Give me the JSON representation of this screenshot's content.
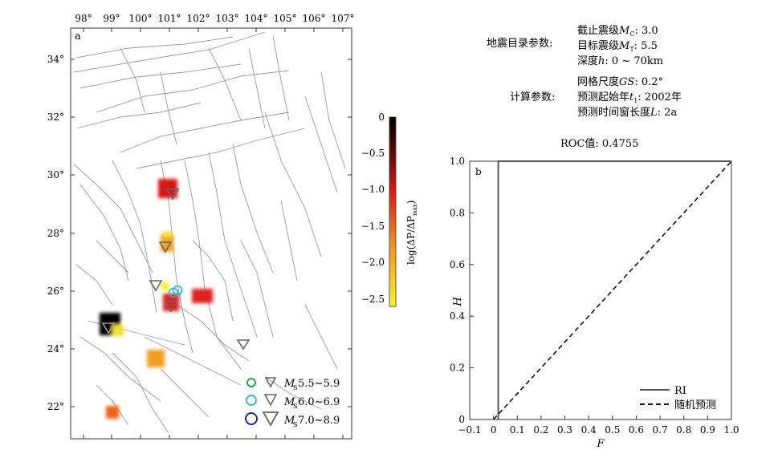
{
  "panel_a": {
    "label": "a",
    "lon_ticks": [
      "98°",
      "99°",
      "100°",
      "101°",
      "102°",
      "103°",
      "104°",
      "105°",
      "106°",
      "107°"
    ],
    "lat_ticks": [
      "34°",
      "32°",
      "30°",
      "28°",
      "26°",
      "24°",
      "22°"
    ],
    "legend": [
      {
        "label": "M",
        "sub": "S",
        "range": "5.5~5.9",
        "color": "#1a9a3a"
      },
      {
        "label": "M",
        "sub": "S",
        "range": "6.0~6.9",
        "color": "#22b5c8"
      },
      {
        "label": "M",
        "sub": "S",
        "range": "7.0~8.9",
        "color": "#1b2a8c"
      }
    ],
    "colorbar": {
      "title": "log(ΔP/ΔP",
      "title_sub": "max",
      "title_close": ")",
      "ticks": [
        "0",
        "−0.5",
        "−1.0",
        "−1.5",
        "−2.0",
        "−2.5"
      ]
    }
  },
  "params": {
    "catalog_title": "地震目录参数:",
    "catalog_items": [
      {
        "label": "截止震级",
        "sym": "M",
        "sub": "C",
        "value": ":  3.0"
      },
      {
        "label": "目标震级",
        "sym": "M",
        "sub": "T",
        "value": ":  5.5"
      },
      {
        "label": "深度",
        "sym": "h",
        "sub": "",
        "value": ": 0 ~ 70km"
      }
    ],
    "calc_title": "计算参数:",
    "calc_items": [
      {
        "label": "网格尺度",
        "sym": "GS",
        "sub": "",
        "value": ":  0.2°"
      },
      {
        "label": "预测起始年",
        "sym": "t",
        "sub": "1",
        "value": ": 2002年"
      },
      {
        "label": "预测时间窗长度",
        "sym": "L",
        "sub": "",
        "value": ":  2a"
      }
    ],
    "roc": "ROC值: 0.4755"
  },
  "chart_data": {
    "type": "line",
    "label": "b",
    "xlabel": "F",
    "ylabel": "H",
    "xlim": [
      -0.1,
      1.0
    ],
    "ylim": [
      0,
      1.0
    ],
    "x_ticks": [
      "−0.1",
      "0",
      "0.1",
      "0.2",
      "0.3",
      "0.4",
      "0.5",
      "0.6",
      "0.7",
      "0.8",
      "0.9",
      "1.0"
    ],
    "y_ticks": [
      "0",
      "0.2",
      "0.4",
      "0.6",
      "0.8",
      "1.0"
    ],
    "series": [
      {
        "name": "RI",
        "style": "solid",
        "x": [
          0.02,
          0.02,
          1.0
        ],
        "y": [
          0,
          1.0,
          1.0
        ]
      },
      {
        "name": "随机预测",
        "style": "dashed",
        "x": [
          0,
          1.0
        ],
        "y": [
          0,
          1.0
        ]
      }
    ],
    "legend_position": "bottom-right"
  }
}
